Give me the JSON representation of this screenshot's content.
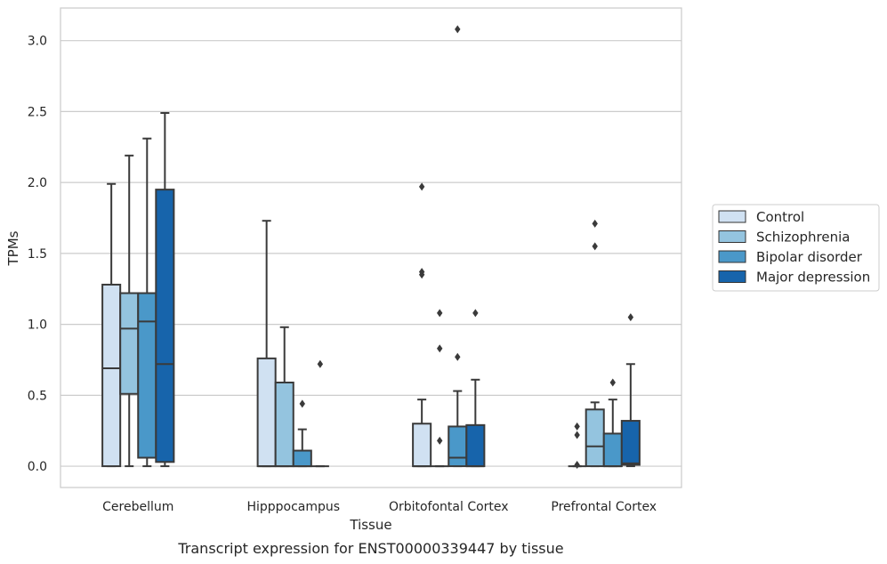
{
  "chart_data": {
    "type": "box",
    "title": "",
    "xlabel": "Tissue",
    "ylabel": "TPMs",
    "caption": "Transcript expression for ENST00000339447 by tissue",
    "ylim": [
      -0.15,
      3.23
    ],
    "yticks": [
      "0.0",
      "0.5",
      "1.0",
      "1.5",
      "2.0",
      "2.5",
      "3.0"
    ],
    "grid": "horizontal",
    "legend_position": "right",
    "categories": [
      "Cerebellum",
      "Hipppocampus",
      "Orbitofontal Cortex",
      "Prefrontal Cortex"
    ],
    "series": [
      {
        "name": "Control",
        "color": "#d0e1f2",
        "boxes": [
          {
            "whislo": 0.0,
            "q1": 0.0,
            "med": 0.69,
            "q3": 1.28,
            "whishi": 1.99,
            "fliers": []
          },
          {
            "whislo": 0.0,
            "q1": 0.0,
            "med": 0.0,
            "q3": 0.76,
            "whishi": 1.73,
            "fliers": []
          },
          {
            "whislo": 0.0,
            "q1": 0.0,
            "med": 0.0,
            "q3": 0.3,
            "whishi": 0.47,
            "fliers": [
              1.97,
              1.37,
              1.35
            ]
          },
          {
            "whislo": 0.0,
            "q1": 0.0,
            "med": 0.0,
            "q3": 0.0,
            "whishi": 0.0,
            "fliers": [
              0.28,
              0.22,
              0.01
            ]
          }
        ]
      },
      {
        "name": "Schizophrenia",
        "color": "#94c4df",
        "boxes": [
          {
            "whislo": 0.0,
            "q1": 0.51,
            "med": 0.97,
            "q3": 1.22,
            "whishi": 2.19,
            "fliers": []
          },
          {
            "whislo": 0.0,
            "q1": 0.0,
            "med": 0.0,
            "q3": 0.59,
            "whishi": 0.98,
            "fliers": []
          },
          {
            "whislo": 0.0,
            "q1": 0.0,
            "med": 0.0,
            "q3": 0.0,
            "whishi": 0.0,
            "fliers": [
              1.08,
              0.83,
              0.18
            ]
          },
          {
            "whislo": 0.0,
            "q1": 0.0,
            "med": 0.14,
            "q3": 0.4,
            "whishi": 0.45,
            "fliers": [
              1.71,
              1.55
            ]
          }
        ]
      },
      {
        "name": "Bipolar disorder",
        "color": "#4a98c9",
        "boxes": [
          {
            "whislo": 0.0,
            "q1": 0.06,
            "med": 1.02,
            "q3": 1.22,
            "whishi": 2.31,
            "fliers": []
          },
          {
            "whislo": 0.0,
            "q1": 0.0,
            "med": 0.0,
            "q3": 0.11,
            "whishi": 0.26,
            "fliers": [
              0.44
            ]
          },
          {
            "whislo": 0.0,
            "q1": 0.0,
            "med": 0.06,
            "q3": 0.28,
            "whishi": 0.53,
            "fliers": [
              3.08,
              0.77
            ]
          },
          {
            "whislo": 0.0,
            "q1": 0.0,
            "med": 0.0,
            "q3": 0.23,
            "whishi": 0.47,
            "fliers": [
              0.59
            ]
          }
        ]
      },
      {
        "name": "Major depression",
        "color": "#1764ab",
        "boxes": [
          {
            "whislo": 0.0,
            "q1": 0.03,
            "med": 0.72,
            "q3": 1.95,
            "whishi": 2.49,
            "fliers": []
          },
          {
            "whislo": 0.0,
            "q1": 0.0,
            "med": 0.0,
            "q3": 0.0,
            "whishi": 0.0,
            "fliers": [
              0.72
            ]
          },
          {
            "whislo": 0.0,
            "q1": 0.0,
            "med": 0.0,
            "q3": 0.29,
            "whishi": 0.61,
            "fliers": [
              1.08
            ]
          },
          {
            "whislo": 0.0,
            "q1": 0.01,
            "med": 0.02,
            "q3": 0.32,
            "whishi": 0.72,
            "fliers": [
              1.05
            ]
          }
        ]
      }
    ]
  }
}
